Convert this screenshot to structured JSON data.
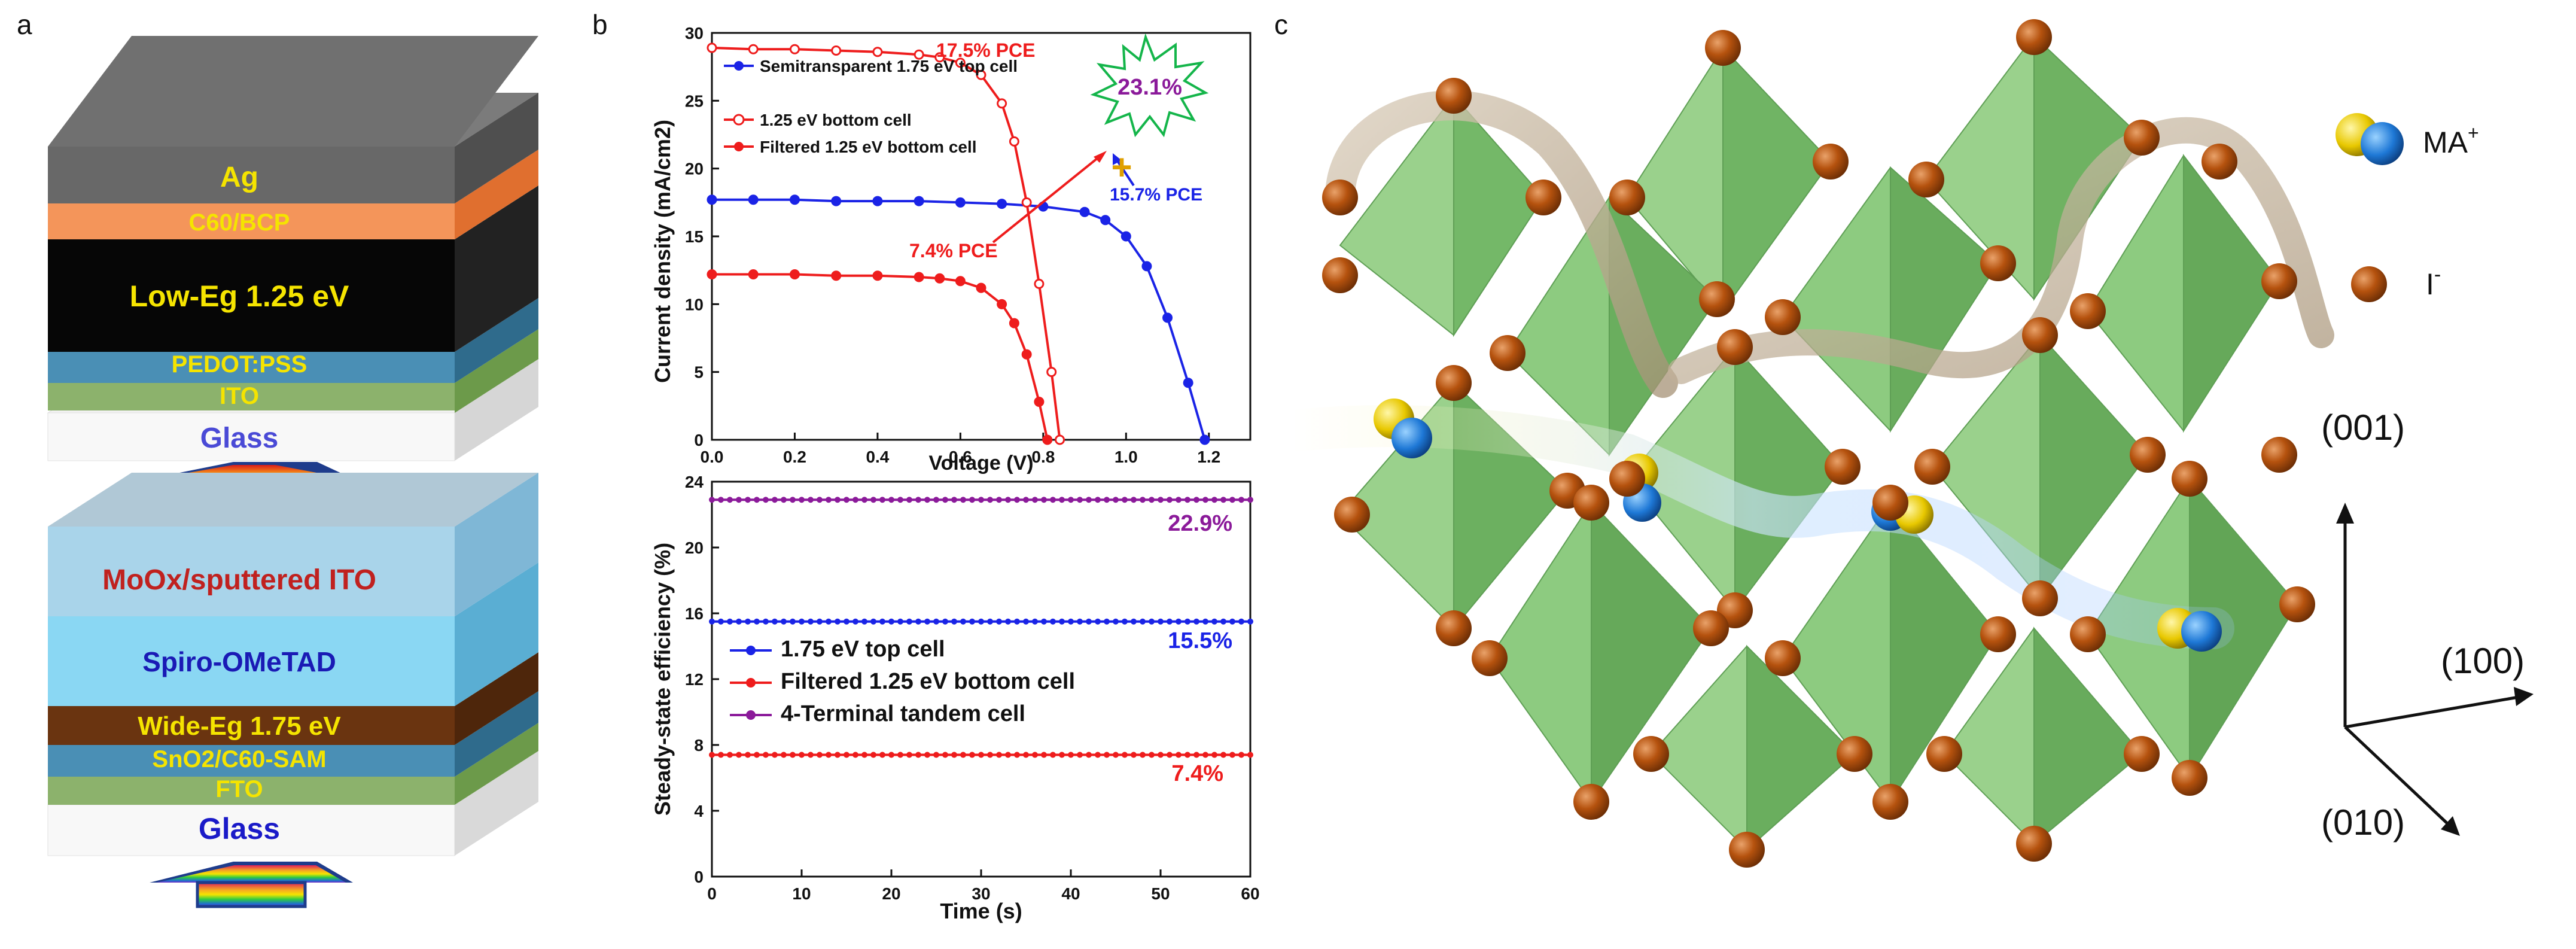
{
  "panels": {
    "a": "a",
    "b": "b",
    "c": "c"
  },
  "stack_top": {
    "layers": {
      "ag": "Ag",
      "c60_bcp": "C60/BCP",
      "low_eg": "Low-Eg 1.25 eV",
      "pedot": "PEDOT:PSS",
      "ito": "ITO",
      "glass": "Glass"
    }
  },
  "stack_bottom": {
    "layers": {
      "moox": "MoOx/sputtered ITO",
      "spiro": "Spiro-OMeTAD",
      "wide_eg": "Wide-Eg 1.75 eV",
      "sno2": "SnO2/C60-SAM",
      "fto": "FTO",
      "glass": "Glass"
    }
  },
  "colors": {
    "blue": "#1a23e6",
    "red": "#ee1c1c",
    "red_light": "#f16f6f",
    "purple": "#8b1a9a",
    "green_octa": "#7fc97a",
    "iodide": "#b5520e"
  },
  "chart_data": [
    {
      "type": "line",
      "xlabel": "Voltage (V)",
      "ylabel": "Current density (mA/cm2)",
      "xlim": [
        0,
        1.3
      ],
      "ylim": [
        0,
        30
      ],
      "xticks": [
        "0.0",
        "0.2",
        "0.4",
        "0.6",
        "0.8",
        "1.0",
        "1.2"
      ],
      "yticks": [
        "0",
        "5",
        "10",
        "15",
        "20",
        "25",
        "30"
      ],
      "legend_position": "top-left",
      "series": [
        {
          "name": "Semitransparent 1.75 eV top cell",
          "marker": "filled-circle",
          "color": "#1a23e6",
          "x": [
            0.0,
            0.1,
            0.2,
            0.3,
            0.4,
            0.5,
            0.6,
            0.7,
            0.8,
            0.9,
            0.95,
            1.0,
            1.05,
            1.1,
            1.15,
            1.19
          ],
          "y": [
            17.7,
            17.7,
            17.7,
            17.6,
            17.6,
            17.6,
            17.5,
            17.4,
            17.2,
            16.8,
            16.2,
            15.0,
            12.8,
            9.0,
            4.2,
            0.0
          ]
        },
        {
          "name": "1.25 eV bottom cell",
          "marker": "open-circle",
          "color": "#ee1c1c",
          "x": [
            0.0,
            0.1,
            0.2,
            0.3,
            0.4,
            0.5,
            0.55,
            0.6,
            0.65,
            0.7,
            0.73,
            0.76,
            0.79,
            0.82,
            0.84
          ],
          "y": [
            28.9,
            28.8,
            28.8,
            28.7,
            28.6,
            28.4,
            28.2,
            27.8,
            26.9,
            24.8,
            22.0,
            17.5,
            11.5,
            5.0,
            0.0
          ]
        },
        {
          "name": "Filtered 1.25 eV bottom cell",
          "marker": "filled-circle",
          "color": "#ee1c1c",
          "x": [
            0.0,
            0.1,
            0.2,
            0.3,
            0.4,
            0.5,
            0.55,
            0.6,
            0.65,
            0.7,
            0.73,
            0.76,
            0.79,
            0.81
          ],
          "y": [
            12.2,
            12.2,
            12.2,
            12.1,
            12.1,
            12.0,
            11.9,
            11.7,
            11.2,
            10.0,
            8.6,
            6.3,
            2.8,
            0.0
          ]
        }
      ],
      "annotations": {
        "pce_bottom": "17.5% PCE",
        "pce_top": "15.7% PCE",
        "pce_filtered": "7.4% PCE",
        "tandem": "23.1%",
        "plus": "+"
      }
    },
    {
      "type": "line",
      "xlabel": "Time (s)",
      "ylabel": "Steady-state efficiency (%)",
      "xlim": [
        0,
        60
      ],
      "ylim": [
        0,
        24
      ],
      "xticks": [
        "0",
        "10",
        "20",
        "30",
        "40",
        "50",
        "60"
      ],
      "yticks": [
        "0",
        "4",
        "8",
        "12",
        "16",
        "20",
        "24"
      ],
      "legend_position": "center-left",
      "series": [
        {
          "name": "1.75 eV top cell",
          "color": "#1a23e6",
          "value": 15.5,
          "label": "15.5%"
        },
        {
          "name": "Filtered 1.25 eV bottom cell",
          "color": "#ee1c1c",
          "value": 7.4,
          "label": "7.4%"
        },
        {
          "name": "4-Terminal tandem cell",
          "color": "#8b1a9a",
          "value": 22.9,
          "label": "22.9%"
        }
      ]
    }
  ],
  "structure": {
    "legend_ma": "MA",
    "legend_ma_charge": "+",
    "legend_i": "I",
    "legend_i_charge": "-",
    "axis_001": "(001)",
    "axis_100": "(100)",
    "axis_010": "(010)"
  }
}
